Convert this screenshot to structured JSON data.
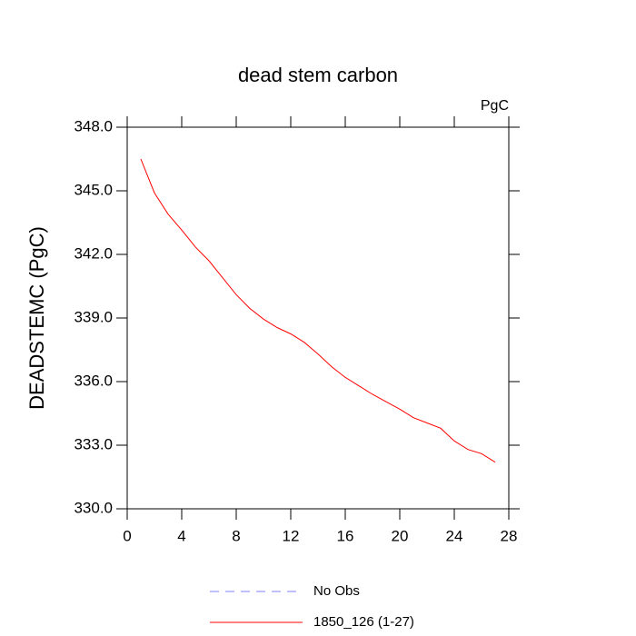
{
  "chart_data": {
    "type": "line",
    "title": "dead stem carbon",
    "units": "PgC",
    "y_label": "DEADSTEMC  (PgC)",
    "x": [
      1,
      2,
      3,
      4,
      5,
      6,
      7,
      8,
      9,
      10,
      11,
      12,
      13,
      14,
      15,
      16,
      17,
      18,
      19,
      20,
      21,
      22,
      23,
      24,
      25,
      26,
      27
    ],
    "series": [
      {
        "name": "1850_126 (1-27)",
        "color": "#ff0000",
        "values": [
          346.5,
          344.9,
          343.9,
          343.15,
          342.35,
          341.7,
          340.9,
          340.1,
          339.45,
          338.95,
          338.55,
          338.25,
          337.85,
          337.3,
          336.7,
          336.2,
          335.8,
          335.4,
          335.05,
          334.7,
          334.3,
          334.05,
          333.8,
          333.2,
          332.8,
          332.6,
          332.2
        ]
      }
    ],
    "legend_items": [
      {
        "name": "No Obs",
        "color": "#8080ff",
        "dashed": true
      },
      {
        "name": "1850_126 (1-27)",
        "color": "#ff0000",
        "dashed": false
      }
    ],
    "xlim": [
      0,
      28
    ],
    "xticks": [
      0,
      4,
      8,
      12,
      16,
      20,
      24,
      28
    ],
    "ylim": [
      330,
      348
    ],
    "yticks": [
      {
        "value": 330,
        "label": "330.0"
      },
      {
        "value": 333,
        "label": "333.0"
      },
      {
        "value": 336,
        "label": "336.0"
      },
      {
        "value": 339,
        "label": "339.0"
      },
      {
        "value": 342,
        "label": "342.0"
      },
      {
        "value": 345,
        "label": "345.0"
      },
      {
        "value": 348,
        "label": "348.0"
      }
    ]
  }
}
